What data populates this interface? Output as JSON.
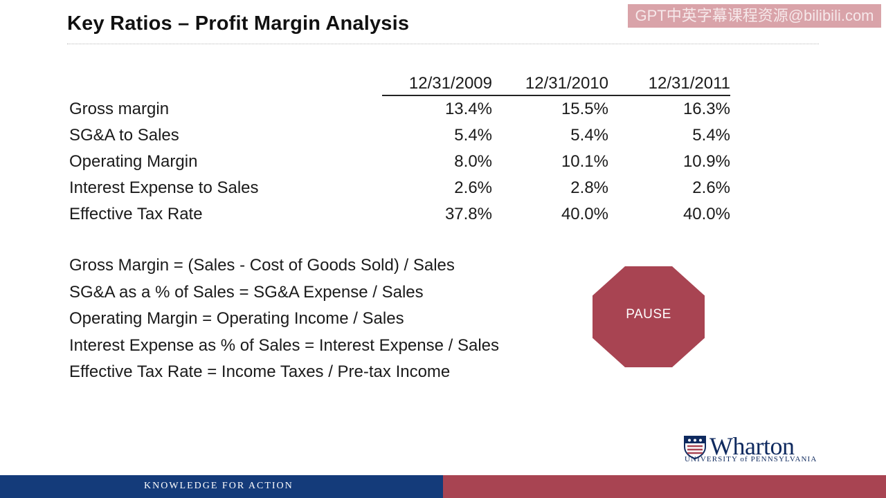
{
  "slide": {
    "title": "Key Ratios – Profit Margin Analysis",
    "watermark": "GPT中英字幕课程资源@bilibili.com"
  },
  "table": {
    "columns": [
      "12/31/2009",
      "12/31/2010",
      "12/31/2011"
    ],
    "rows": [
      {
        "label": "Gross margin",
        "values": [
          "13.4%",
          "15.5%",
          "16.3%"
        ]
      },
      {
        "label": "SG&A to Sales",
        "values": [
          "5.4%",
          "5.4%",
          "5.4%"
        ]
      },
      {
        "label": "Operating Margin",
        "values": [
          "8.0%",
          "10.1%",
          "10.9%"
        ]
      },
      {
        "label": "Interest Expense to Sales",
        "values": [
          "2.6%",
          "2.8%",
          "2.6%"
        ]
      },
      {
        "label": "Effective Tax Rate",
        "values": [
          "37.8%",
          "40.0%",
          "40.0%"
        ]
      }
    ]
  },
  "formulas": [
    "Gross Margin = (Sales - Cost of Goods Sold) / Sales",
    "SG&A as a % of Sales = SG&A Expense / Sales",
    "Operating Margin = Operating Income / Sales",
    "Interest Expense as % of Sales = Interest Expense / Sales",
    "Effective Tax Rate = Income Taxes / Pre-tax Income"
  ],
  "pause": {
    "label": "PAUSE"
  },
  "logo": {
    "wordmark": "Wharton",
    "subtitle": "UNIVERSITY of PENNSYLVANIA",
    "icon": "penn-shield-icon"
  },
  "footer": {
    "tagline": "KNOWLEDGE FOR ACTION"
  },
  "colors": {
    "navy": "#143b7a",
    "maroon": "#a84452",
    "logo_blue": "#0f2a5f"
  }
}
